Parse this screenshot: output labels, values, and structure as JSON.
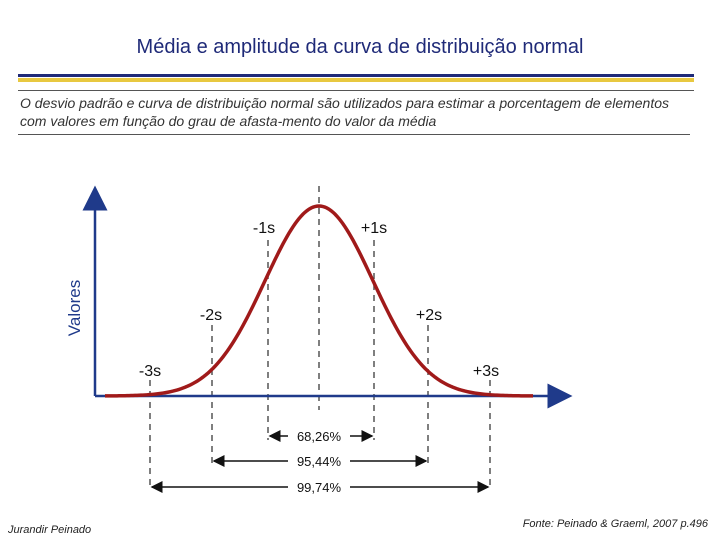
{
  "header": {
    "title": "Média e amplitude da curva de distribuição normal",
    "subtitle": "O desvio padrão e curva de distribuição normal são utilizados para estimar a porcentagem de elementos com valores em função do grau de afasta-mento do valor da média"
  },
  "diagram": {
    "y_axis_label": "Valores",
    "sigma_labels": [
      "-3s",
      "-2s",
      "-1s",
      "+1s",
      "+2s",
      "+3s"
    ],
    "ranges": [
      "68,26%",
      "95,44%",
      "99,74%"
    ],
    "colors": {
      "curve": "#a01a1a",
      "axis": "#1f3a8a",
      "dashed": "#555555"
    }
  },
  "footer": {
    "author": "Jurandir Peinado",
    "source": "Fonte: Peinado & Graeml, 2007 p.496"
  }
}
